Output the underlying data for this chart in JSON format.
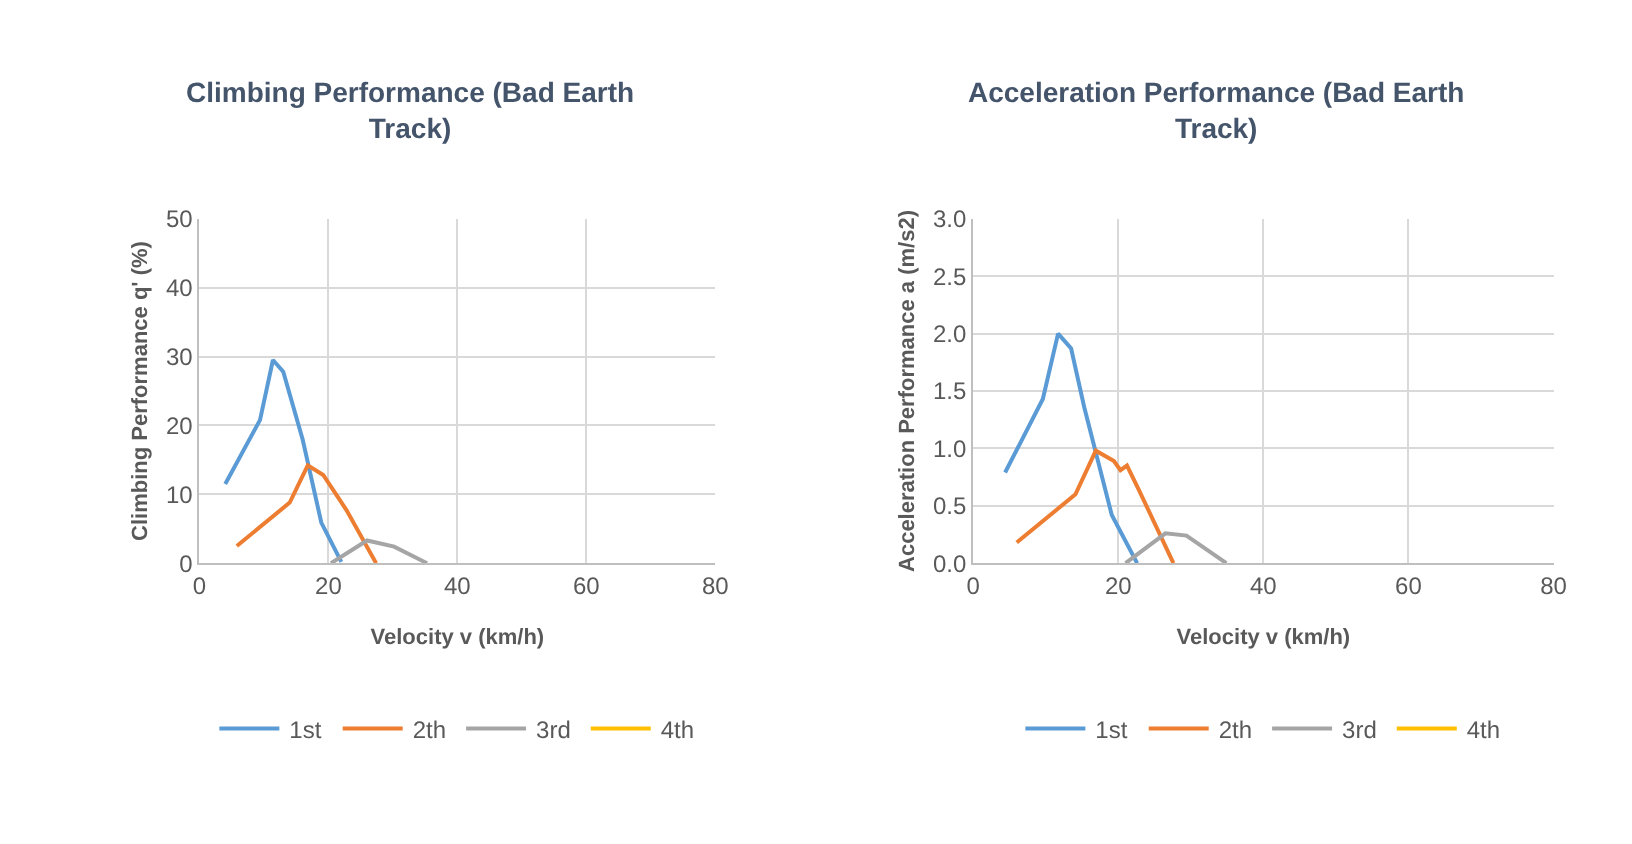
{
  "chart_data": [
    {
      "type": "line",
      "title": "Climbing Performance (Bad Earth\nTrack)",
      "xlabel": "Velocity v (km/h)",
      "ylabel": "Climbing Performance q' (%)",
      "xlim": [
        0,
        80
      ],
      "xticks": [
        0,
        20,
        40,
        60,
        80
      ],
      "ylim": [
        0,
        50
      ],
      "yticks": [
        0,
        10,
        20,
        30,
        40,
        50
      ],
      "grid": true,
      "legend": "bottom",
      "series": [
        {
          "name": "1st",
          "color": "#5b9bd5",
          "x": [
            4,
            9.4,
            11.4,
            13,
            16,
            18.9,
            22
          ],
          "values": [
            11.5,
            20.8,
            29.5,
            27.8,
            18,
            5.9,
            0.2
          ]
        },
        {
          "name": "2th",
          "color": "#ed7d31",
          "x": [
            5.8,
            14,
            16.8,
            19.2,
            22.8,
            27.4
          ],
          "values": [
            2.5,
            8.8,
            14.2,
            12.8,
            7.7,
            0
          ]
        },
        {
          "name": "3rd",
          "color": "#a5a5a5",
          "x": [
            20.4,
            26,
            30.2,
            35.3
          ],
          "values": [
            0,
            3.3,
            2.4,
            0
          ]
        },
        {
          "name": "4th",
          "color": "#ffc000"
        }
      ]
    },
    {
      "type": "line",
      "title": "Acceleration Performance (Bad Earth\nTrack)",
      "xlabel": "Velocity v (km/h)",
      "ylabel": "Acceleration Performance a (m/s2)",
      "xlim": [
        0,
        80
      ],
      "xticks": [
        0,
        20,
        40,
        60,
        80
      ],
      "ylim": [
        0,
        3
      ],
      "yticks": [
        {
          "value": 0,
          "label": "0.0"
        },
        0.5,
        {
          "value": 1,
          "label": "1.0"
        },
        1.5,
        {
          "value": 2,
          "label": "2.0"
        },
        2.5,
        {
          "value": 3,
          "label": "3.0"
        }
      ],
      "grid": true,
      "legend": "bottom",
      "series": [
        {
          "name": "1st",
          "color": "#5b9bd5",
          "x": [
            4.4,
            9.6,
            11.7,
            13.5,
            15.3,
            19.1,
            22.6
          ],
          "values": [
            0.79,
            1.43,
            2.0,
            1.87,
            1.36,
            0.42,
            0
          ]
        },
        {
          "name": "2th",
          "color": "#ed7d31",
          "x": [
            6,
            14.1,
            16.9,
            19.4,
            20.3,
            21.2,
            22.9,
            27.6
          ],
          "values": [
            0.18,
            0.6,
            0.98,
            0.89,
            0.81,
            0.85,
            0.63,
            0
          ]
        },
        {
          "name": "3rd",
          "color": "#a5a5a5",
          "x": [
            21,
            26.5,
            29.4,
            34.9
          ],
          "values": [
            0,
            0.26,
            0.24,
            0
          ]
        },
        {
          "name": "4th",
          "color": "#ffc000"
        }
      ]
    }
  ]
}
